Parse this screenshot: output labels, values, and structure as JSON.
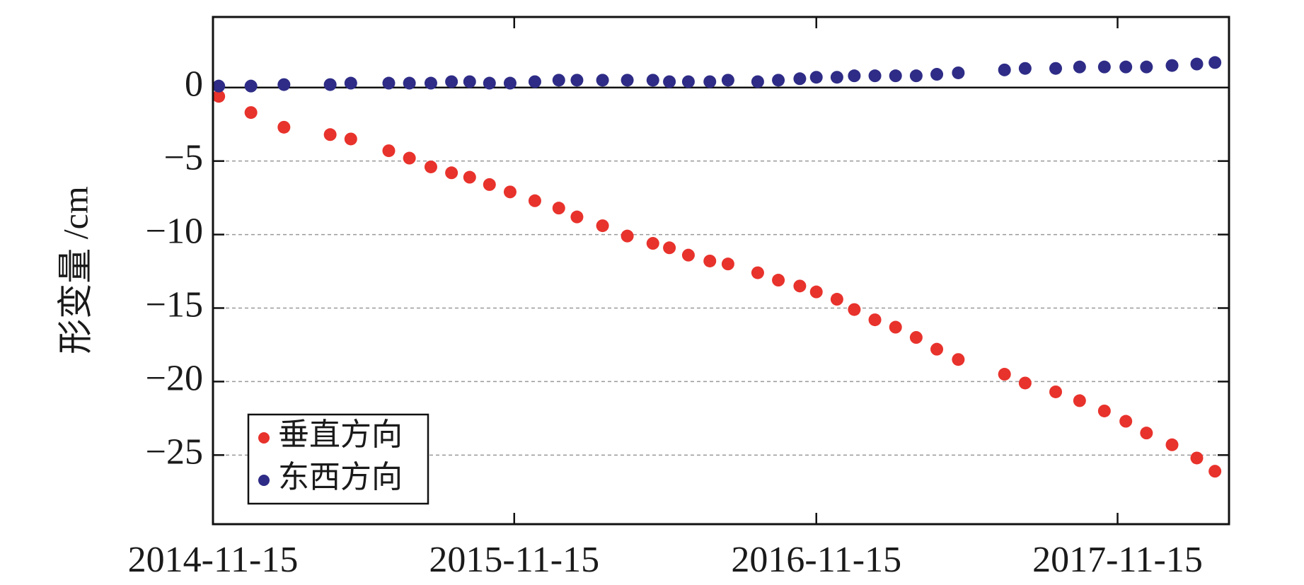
{
  "chart_data": {
    "type": "scatter",
    "ylabel": "形变量 /cm",
    "xlim": [
      "2014-11-15",
      "2018-03-30"
    ],
    "xticks": [
      "2014-11-15",
      "2015-11-15",
      "2016-11-15",
      "2017-11-15"
    ],
    "ylim": [
      -29.7,
      4.8
    ],
    "yticks": [
      {
        "value": 0,
        "label": "0"
      },
      {
        "value": -5,
        "label": "−5"
      },
      {
        "value": -10,
        "label": "−10"
      },
      {
        "value": -15,
        "label": "−15"
      },
      {
        "value": -20,
        "label": "−20"
      },
      {
        "value": -25,
        "label": "−25"
      }
    ],
    "grid": true,
    "legend": "lower left",
    "x": [
      "2014-11-22",
      "2014-12-31",
      "2015-02-09",
      "2015-04-06",
      "2015-05-01",
      "2015-06-16",
      "2015-07-11",
      "2015-08-06",
      "2015-08-31",
      "2015-09-22",
      "2015-10-16",
      "2015-11-10",
      "2015-12-10",
      "2016-01-08",
      "2016-01-30",
      "2016-03-01",
      "2016-03-31",
      "2016-05-01",
      "2016-05-21",
      "2016-06-13",
      "2016-07-09",
      "2016-07-31",
      "2016-09-05",
      "2016-09-30",
      "2016-10-26",
      "2016-11-15",
      "2016-12-10",
      "2016-12-31",
      "2017-01-25",
      "2017-02-19",
      "2017-03-16",
      "2017-04-10",
      "2017-05-06",
      "2017-07-01",
      "2017-07-26",
      "2017-09-01",
      "2017-09-30",
      "2017-10-30",
      "2017-11-25",
      "2017-12-20",
      "2018-01-20",
      "2018-02-19",
      "2018-03-13"
    ],
    "series": [
      {
        "name": "垂直方向",
        "color": "#e8322c",
        "values": [
          -0.6,
          -1.7,
          -2.7,
          -3.2,
          -3.5,
          -4.3,
          -4.8,
          -5.4,
          -5.8,
          -6.1,
          -6.6,
          -7.1,
          -7.7,
          -8.2,
          -8.8,
          -9.4,
          -10.1,
          -10.6,
          -10.9,
          -11.4,
          -11.8,
          -12.0,
          -12.6,
          -13.1,
          -13.5,
          -13.9,
          -14.4,
          -15.1,
          -15.8,
          -16.3,
          -17.0,
          -17.8,
          -18.5,
          -19.5,
          -20.1,
          -20.7,
          -21.3,
          -22.0,
          -22.7,
          -23.5,
          -24.3,
          -25.2,
          -26.1
        ]
      },
      {
        "name": "东西方向",
        "color": "#2e2c86",
        "values": [
          0.1,
          0.1,
          0.2,
          0.2,
          0.3,
          0.3,
          0.3,
          0.3,
          0.4,
          0.4,
          0.3,
          0.3,
          0.4,
          0.5,
          0.5,
          0.5,
          0.5,
          0.5,
          0.4,
          0.4,
          0.4,
          0.5,
          0.4,
          0.5,
          0.6,
          0.7,
          0.7,
          0.8,
          0.8,
          0.8,
          0.8,
          0.9,
          1.0,
          1.2,
          1.3,
          1.3,
          1.4,
          1.4,
          1.4,
          1.4,
          1.5,
          1.6,
          1.7
        ]
      }
    ]
  }
}
